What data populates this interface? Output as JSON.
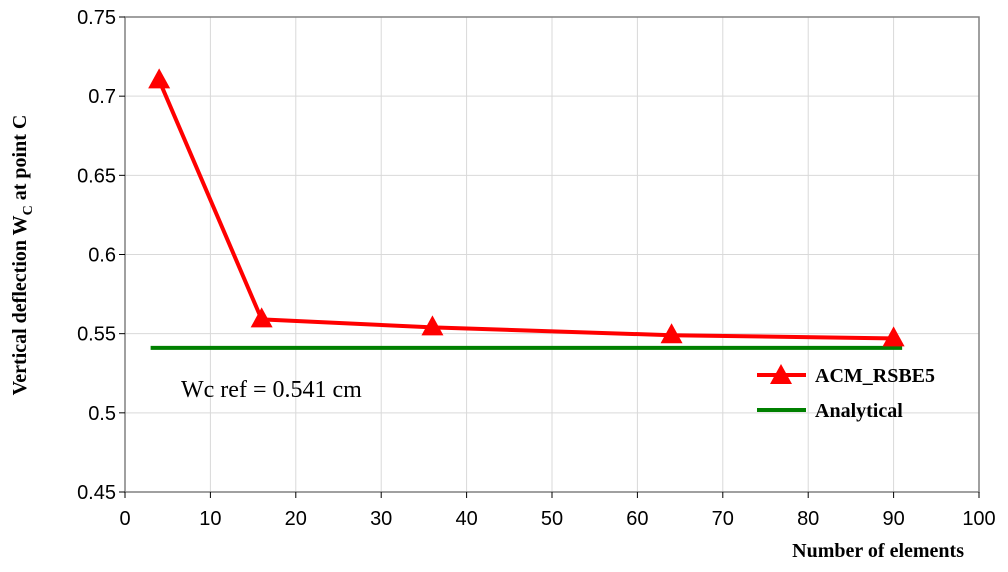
{
  "chart_data": {
    "type": "line",
    "title": "",
    "xlabel": "Number of elements",
    "ylabel_main": "Vertical deflection W",
    "ylabel_sub": "C",
    "ylabel_tail": " at  point C",
    "xlim": [
      0,
      100
    ],
    "ylim": [
      0.45,
      0.75
    ],
    "xticks": [
      0,
      10,
      20,
      30,
      40,
      50,
      60,
      70,
      80,
      90,
      100
    ],
    "yticks": [
      0.45,
      0.5,
      0.55,
      0.6,
      0.65,
      0.7,
      0.75
    ],
    "ytick_labels": [
      "0.45",
      "0.5",
      "0.55",
      "0.6",
      "0.65",
      "0.7",
      "0.75"
    ],
    "grid": true,
    "legend_position": "right",
    "annotation": "Wc ref = 0.541 cm",
    "series": [
      {
        "name": "ACM_RSBE5",
        "color": "#ff0000",
        "marker": "triangle",
        "x": [
          4,
          16,
          36,
          64,
          90
        ],
        "y": [
          0.71,
          0.559,
          0.554,
          0.549,
          0.547
        ]
      },
      {
        "name": "Analytical",
        "color": "#008000",
        "marker": "none",
        "x": [
          3,
          16,
          36,
          64,
          91
        ],
        "y": [
          0.541,
          0.541,
          0.541,
          0.541,
          0.541
        ]
      }
    ]
  }
}
